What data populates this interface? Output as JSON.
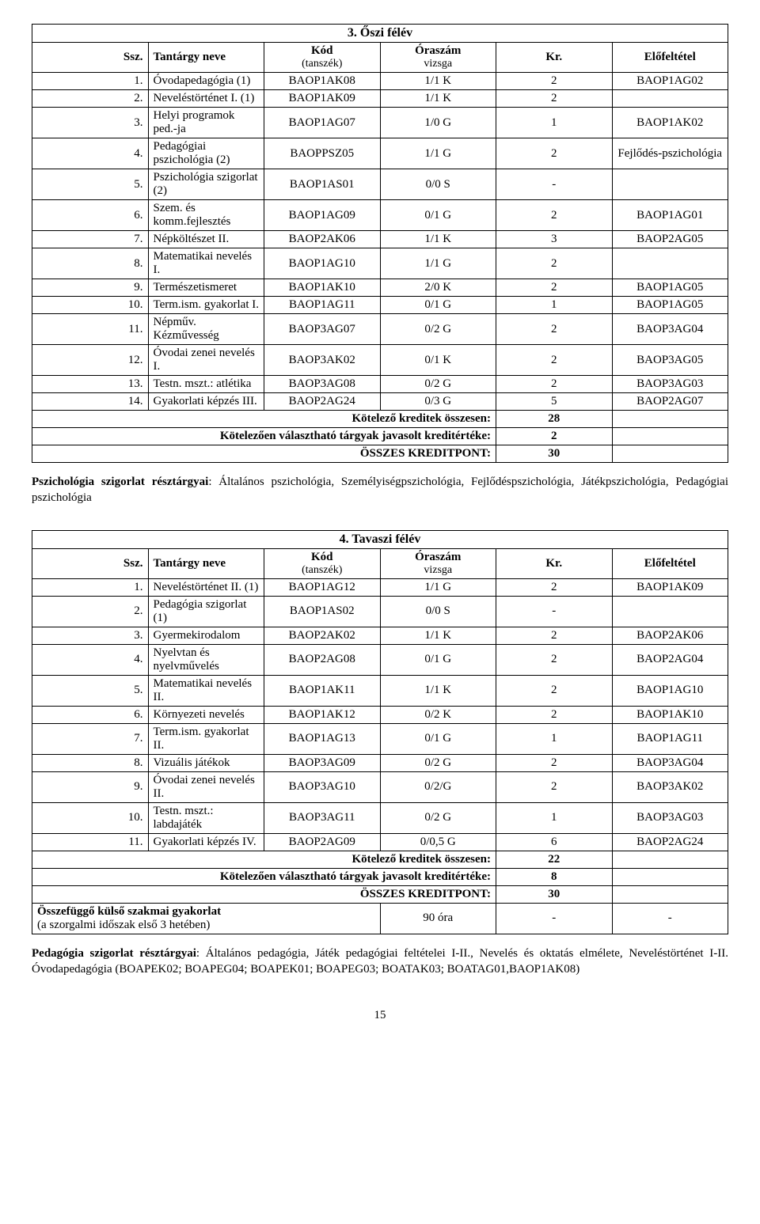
{
  "section3": {
    "title": "3. Őszi félév",
    "headers": {
      "ssz": "Ssz.",
      "name": "Tantárgy neve",
      "kod": "Kód",
      "kod_sub": "(tanszék)",
      "ora": "Óraszám",
      "ora_sub": "vizsga",
      "kr": "Kr.",
      "elo": "Előfeltétel"
    },
    "rows": [
      {
        "n": "1.",
        "name": "Óvodapedagógia (1)",
        "kod": "BAOP1AK08",
        "ora": "1/1 K",
        "kr": "2",
        "elo": "BAOP1AG02"
      },
      {
        "n": "2.",
        "name": "Neveléstörténet I. (1)",
        "kod": "BAOP1AK09",
        "ora": "1/1 K",
        "kr": "2",
        "elo": ""
      },
      {
        "n": "3.",
        "name": "Helyi programok ped.-ja",
        "kod": "BAOP1AG07",
        "ora": "1/0 G",
        "kr": "1",
        "elo": "BAOP1AK02"
      },
      {
        "n": "4.",
        "name": "Pedagógiai pszichológia (2)",
        "kod": "BAOPPSZ05",
        "ora": "1/1 G",
        "kr": "2",
        "elo": "Fejlődés-pszichológia"
      },
      {
        "n": "5.",
        "name": "Pszichológia szigorlat (2)",
        "kod": "BAOP1AS01",
        "ora": "0/0 S",
        "kr": "-",
        "elo": ""
      },
      {
        "n": "6.",
        "name": "Szem. és komm.fejlesztés",
        "kod": "BAOP1AG09",
        "ora": "0/1 G",
        "kr": "2",
        "elo": "BAOP1AG01"
      },
      {
        "n": "7.",
        "name": "Népköltészet II.",
        "kod": "BAOP2AK06",
        "ora": "1/1 K",
        "kr": "3",
        "elo": "BAOP2AG05"
      },
      {
        "n": "8.",
        "name": "Matematikai nevelés I.",
        "kod": "BAOP1AG10",
        "ora": "1/1 G",
        "kr": "2",
        "elo": ""
      },
      {
        "n": "9.",
        "name": "Természetismeret",
        "kod": "BAOP1AK10",
        "ora": "2/0 K",
        "kr": "2",
        "elo": "BAOP1AG05"
      },
      {
        "n": "10.",
        "name": "Term.ism. gyakorlat I.",
        "kod": "BAOP1AG11",
        "ora": "0/1 G",
        "kr": "1",
        "elo": "BAOP1AG05"
      },
      {
        "n": "11.",
        "name": "Népműv. Kézművesség",
        "kod": "BAOP3AG07",
        "ora": "0/2 G",
        "kr": "2",
        "elo": "BAOP3AG04"
      },
      {
        "n": "12.",
        "name": "Óvodai zenei nevelés I.",
        "kod": "BAOP3AK02",
        "ora": "0/1 K",
        "kr": "2",
        "elo": "BAOP3AG05"
      },
      {
        "n": "13.",
        "name": "Testn. mszt.: atlétika",
        "kod": "BAOP3AG08",
        "ora": "0/2 G",
        "kr": "2",
        "elo": "BAOP3AG03"
      },
      {
        "n": "14.",
        "name": "Gyakorlati képzés III.",
        "kod": "BAOP2AG24",
        "ora": "0/3 G",
        "kr": "5",
        "elo": "BAOP2AG07"
      }
    ],
    "summary": [
      {
        "label": "Kötelező kreditek összesen:",
        "val": "28"
      },
      {
        "label": "Kötelezően választható tárgyak javasolt kreditértéke:",
        "val": "2"
      },
      {
        "label": "ÖSSZES KREDITPONT:",
        "val": "30"
      }
    ],
    "note_bold": "Pszichológia szigorlat résztárgyai",
    "note_rest": ": Általános pszichológia, Személyiségpszichológia, Fejlődéspszichológia, Játékpszichológia, Pedagógiai pszichológia"
  },
  "section4": {
    "title": "4. Tavaszi félév",
    "headers": {
      "ssz": "Ssz.",
      "name": "Tantárgy neve",
      "kod": "Kód",
      "kod_sub": "(tanszék)",
      "ora": "Óraszám",
      "ora_sub": "vizsga",
      "kr": "Kr.",
      "elo": "Előfeltétel"
    },
    "rows": [
      {
        "n": "1.",
        "name": "Neveléstörténet II. (1)",
        "kod": "BAOP1AG12",
        "ora": "1/1 G",
        "kr": "2",
        "elo": "BAOP1AK09"
      },
      {
        "n": "2.",
        "name": "Pedagógia szigorlat (1)",
        "kod": "BAOP1AS02",
        "ora": "0/0 S",
        "kr": "-",
        "elo": ""
      },
      {
        "n": "3.",
        "name": "Gyermekirodalom",
        "kod": "BAOP2AK02",
        "ora": "1/1 K",
        "kr": "2",
        "elo": "BAOP2AK06"
      },
      {
        "n": "4.",
        "name": "Nyelvtan és nyelvművelés",
        "kod": "BAOP2AG08",
        "ora": "0/1 G",
        "kr": "2",
        "elo": "BAOP2AG04"
      },
      {
        "n": "5.",
        "name": "Matematikai nevelés II.",
        "kod": "BAOP1AK11",
        "ora": "1/1 K",
        "kr": "2",
        "elo": "BAOP1AG10"
      },
      {
        "n": "6.",
        "name": "Környezeti nevelés",
        "kod": "BAOP1AK12",
        "ora": "0/2 K",
        "kr": "2",
        "elo": "BAOP1AK10"
      },
      {
        "n": "7.",
        "name": "Term.ism. gyakorlat II.",
        "kod": "BAOP1AG13",
        "ora": "0/1 G",
        "kr": "1",
        "elo": "BAOP1AG11"
      },
      {
        "n": "8.",
        "name": "Vizuális játékok",
        "kod": "BAOP3AG09",
        "ora": "0/2 G",
        "kr": "2",
        "elo": "BAOP3AG04"
      },
      {
        "n": "9.",
        "name": "Óvodai zenei nevelés II.",
        "kod": "BAOP3AG10",
        "ora": "0/2/G",
        "kr": "2",
        "elo": "BAOP3AK02"
      },
      {
        "n": "10.",
        "name": "Testn. mszt.: labdajáték",
        "kod": "BAOP3AG11",
        "ora": "0/2 G",
        "kr": "1",
        "elo": "BAOP3AG03"
      },
      {
        "n": "11.",
        "name": "Gyakorlati képzés IV.",
        "kod": "BAOP2AG09",
        "ora": "0/0,5 G",
        "kr": "6",
        "elo": "BAOP2AG24"
      }
    ],
    "summary": [
      {
        "label": "Kötelező kreditek összesen:",
        "val": "22"
      },
      {
        "label": "Kötelezően választható tárgyak javasolt kreditértéke:",
        "val": "8"
      },
      {
        "label": "ÖSSZES KREDITPONT:",
        "val": "30"
      }
    ],
    "extra_row": {
      "label_bold": "Összefüggő külső szakmai gyakorlat",
      "label_rest": "(a szorgalmi időszak első 3 hetében)",
      "ora": "90 óra",
      "kr": "-",
      "elo": "-"
    },
    "note_bold": "Pedagógia szigorlat résztárgyai",
    "note_rest": ": Általános pedagógia, Játék pedagógiai feltételei I-II., Nevelés és oktatás elmélete, Neveléstörténet I-II.  Óvodapedagógia (BOAPEK02; BOAPEG04; BOAPEK01; BOAPEG03; BOATAK03; BOATAG01,BAOP1AK08)"
  },
  "page_number": "15"
}
